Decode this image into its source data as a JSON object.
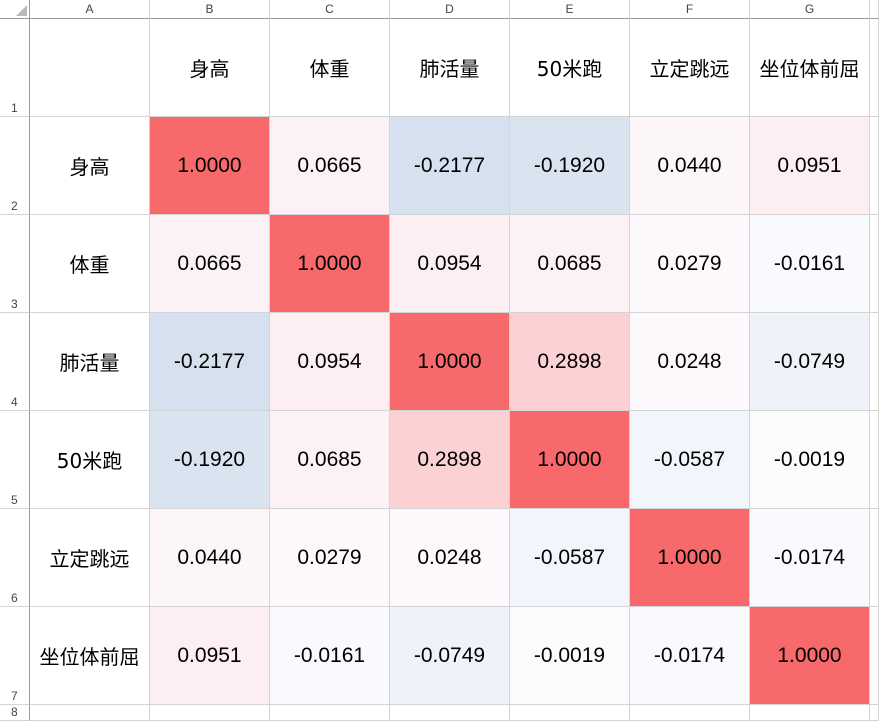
{
  "columns": [
    "A",
    "B",
    "C",
    "D",
    "E",
    "F",
    "G"
  ],
  "rows": [
    "1",
    "2",
    "3",
    "4",
    "5",
    "6",
    "7",
    "8"
  ],
  "header_labels": [
    "身高",
    "体重",
    "肺活量",
    "50米跑",
    "立定跳远",
    "坐位体前屈"
  ],
  "row_labels": [
    "身高",
    "体重",
    "肺活量",
    "50米跑",
    "立定跳远",
    "坐位体前屈"
  ],
  "matrix": [
    [
      "1.0000",
      "0.0665",
      "-0.2177",
      "-0.1920",
      "0.0440",
      "0.0951"
    ],
    [
      "0.0665",
      "1.0000",
      "0.0954",
      "0.0685",
      "0.0279",
      "-0.0161"
    ],
    [
      "-0.2177",
      "0.0954",
      "1.0000",
      "0.2898",
      "0.0248",
      "-0.0749"
    ],
    [
      "-0.1920",
      "0.0685",
      "0.2898",
      "1.0000",
      "-0.0587",
      "-0.0019"
    ],
    [
      "0.0440",
      "0.0279",
      "0.0248",
      "-0.0587",
      "1.0000",
      "-0.0174"
    ],
    [
      "0.0951",
      "-0.0161",
      "-0.0749",
      "-0.0019",
      "-0.0174",
      "1.0000"
    ]
  ],
  "colors": {
    "max_red": "#f8696b",
    "min_blue": "#d6e1ef",
    "neutral": "#fcfcff"
  }
}
